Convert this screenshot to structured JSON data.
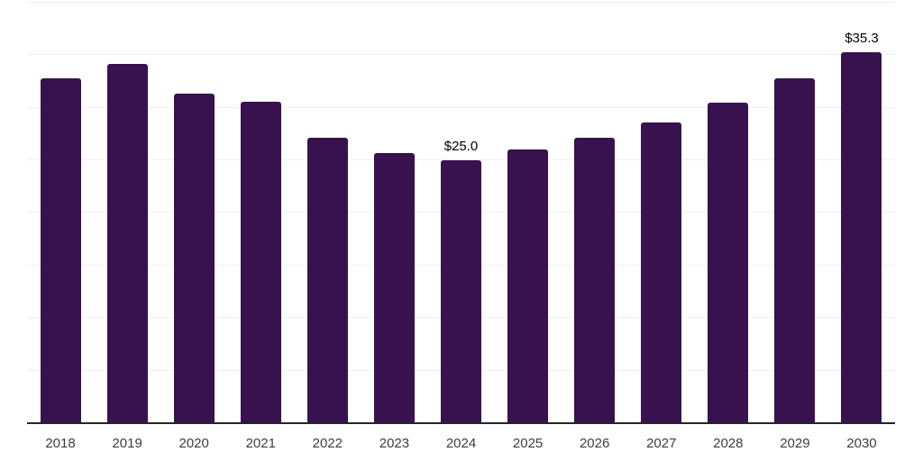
{
  "chart_data": {
    "type": "bar",
    "categories": [
      "2018",
      "2019",
      "2020",
      "2021",
      "2022",
      "2023",
      "2024",
      "2025",
      "2026",
      "2027",
      "2028",
      "2029",
      "2030"
    ],
    "values": [
      32.8,
      34.2,
      31.3,
      30.6,
      27.1,
      25.7,
      25.0,
      26.0,
      27.1,
      28.6,
      30.5,
      32.8,
      35.3
    ],
    "point_labels": [
      "",
      "",
      "",
      "",
      "",
      "",
      "$25.0",
      "",
      "",
      "",
      "",
      "",
      "$35.3"
    ],
    "title": "",
    "xlabel": "",
    "ylabel": "",
    "ylim": [
      0,
      40
    ],
    "gridline_step": 5,
    "grid": true,
    "legend": "none",
    "colors": {
      "bar": "#37124E",
      "gridline": "#f0f0f0",
      "axis_line": "#262626",
      "x_label": "#3d3d3d",
      "value_label": "#000000",
      "background": "#ffffff"
    }
  }
}
